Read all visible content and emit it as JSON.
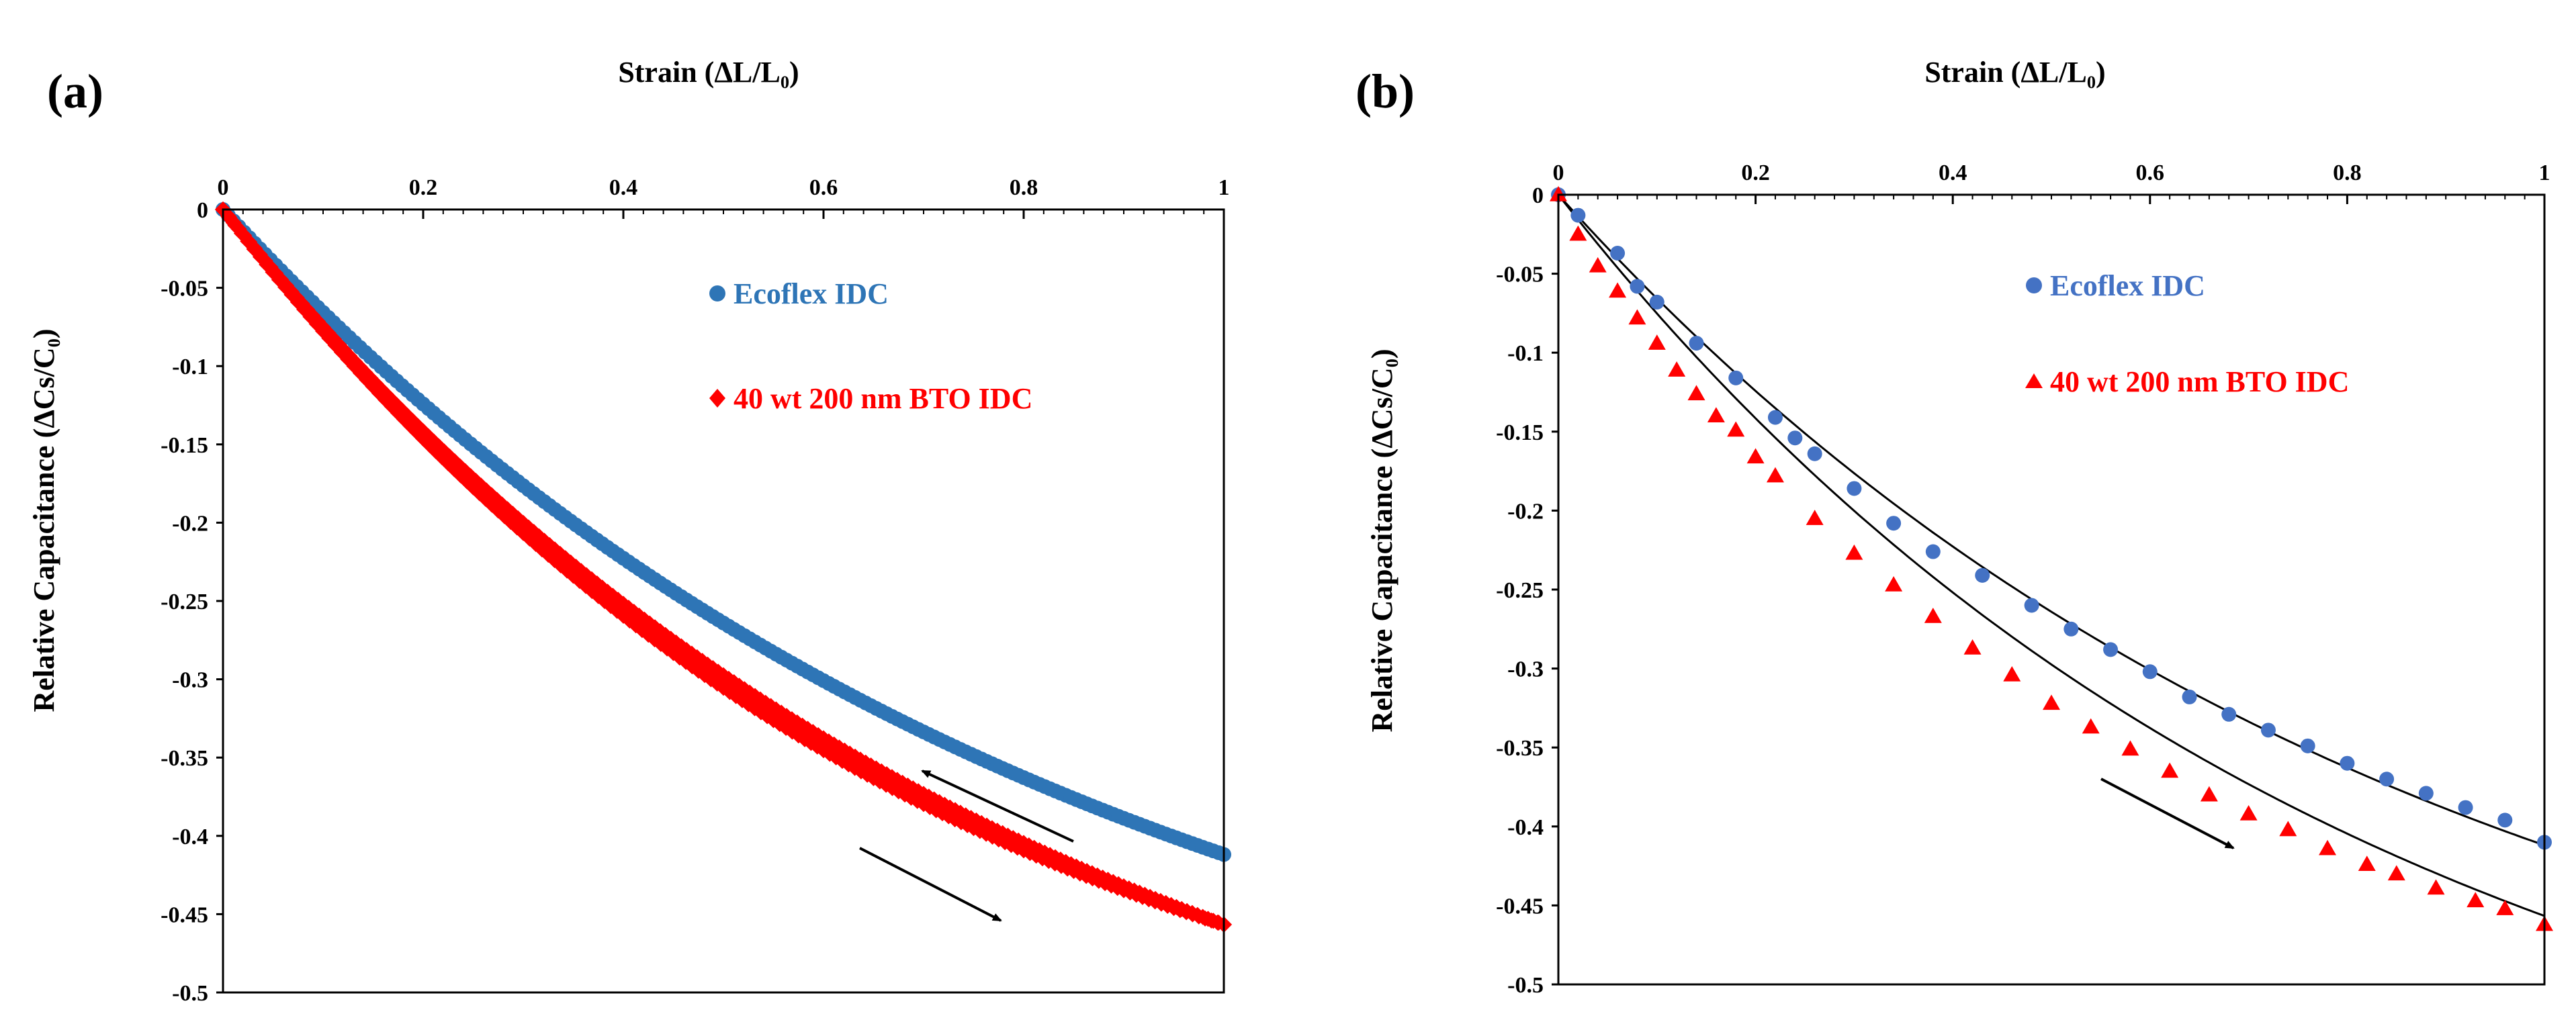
{
  "chart_data": [
    {
      "type": "scatter",
      "panel_label": "(a)",
      "xlabel": "Strain (ΔL/L₀)",
      "ylabel": "Relative Capacitance (ΔCs/C₀)",
      "xlim": [
        0,
        1
      ],
      "ylim": [
        -0.5,
        0
      ],
      "x_ticks": [
        "0",
        "0.2",
        "0.4",
        "0.6",
        "0.8",
        "1"
      ],
      "y_ticks": [
        "0",
        "-0.05",
        "-0.1",
        "-0.15",
        "-0.2",
        "-0.25",
        "-0.3",
        "-0.35",
        "-0.4",
        "-0.45",
        "-0.5"
      ],
      "x_axis_position": "top",
      "legend_position": "top-center",
      "series": [
        {
          "name": "Ecoflex IDC",
          "color": "#2e75b6",
          "marker": "circle",
          "x_start": 0.0,
          "curve": {
            "a": 0.6,
            "k": 1.16
          },
          "x": [
            0.0,
            0.1,
            0.2,
            0.3,
            0.4,
            0.5,
            0.6,
            0.7,
            0.8,
            0.9,
            1.0
          ],
          "values": [
            0.0,
            -0.066,
            -0.125,
            -0.176,
            -0.223,
            -0.264,
            -0.3,
            -0.333,
            -0.362,
            -0.387,
            -0.409
          ]
        },
        {
          "name": "40 wt 200 nm BTO IDC",
          "color": "#ff0000",
          "marker": "diamond",
          "x_start": 0.0,
          "curve": {
            "a": 0.64,
            "k": 1.25
          },
          "x": [
            0.0,
            0.1,
            0.2,
            0.3,
            0.4,
            0.5,
            0.6,
            0.7,
            0.8,
            0.9,
            1.0
          ],
          "values": [
            0.0,
            -0.076,
            -0.142,
            -0.2,
            -0.252,
            -0.297,
            -0.336,
            -0.371,
            -0.402,
            -0.429,
            -0.46
          ]
        }
      ],
      "annotations": [
        {
          "type": "arrow",
          "from": [
            0.85,
            -0.4
          ],
          "to": [
            0.69,
            -0.35
          ],
          "meaning": "unloading"
        },
        {
          "type": "arrow",
          "from": [
            0.64,
            -0.4
          ],
          "to": [
            0.78,
            -0.445
          ],
          "meaning": "loading"
        }
      ]
    },
    {
      "type": "scatter",
      "panel_label": "(b)",
      "xlabel": "Strain (ΔL/L₀)",
      "ylabel": "Relative Capacitance (ΔCs/C₀)",
      "xlim": [
        0,
        1
      ],
      "ylim": [
        -0.5,
        0
      ],
      "x_ticks": [
        "0",
        "0.2",
        "0.4",
        "0.6",
        "0.8",
        "1"
      ],
      "y_ticks": [
        "0",
        "-0.05",
        "-0.1",
        "-0.15",
        "-0.2",
        "-0.25",
        "-0.3",
        "-0.35",
        "-0.4",
        "-0.45",
        "-0.5"
      ],
      "x_axis_position": "top",
      "legend_position": "top-center",
      "series": [
        {
          "name": "Ecoflex IDC",
          "color": "#4472c4",
          "marker": "circle",
          "x": [
            0.0,
            0.02,
            0.06,
            0.08,
            0.1,
            0.14,
            0.18,
            0.22,
            0.24,
            0.26,
            0.3,
            0.34,
            0.38,
            0.43,
            0.48,
            0.52,
            0.56,
            0.6,
            0.64,
            0.68,
            0.72,
            0.76,
            0.8,
            0.84,
            0.88,
            0.92,
            0.96,
            1.0
          ],
          "values": [
            0.0,
            -0.013,
            -0.037,
            -0.058,
            -0.068,
            -0.094,
            -0.116,
            -0.141,
            -0.154,
            -0.164,
            -0.186,
            -0.208,
            -0.226,
            -0.241,
            -0.26,
            -0.275,
            -0.288,
            -0.302,
            -0.318,
            -0.329,
            -0.339,
            -0.349,
            -0.36,
            -0.37,
            -0.379,
            -0.388,
            -0.396,
            -0.41
          ]
        },
        {
          "name": "40 wt 200 nm BTO IDC",
          "color": "#ff0000",
          "marker": "triangle",
          "x": [
            0.0,
            0.02,
            0.04,
            0.06,
            0.08,
            0.1,
            0.12,
            0.14,
            0.16,
            0.18,
            0.2,
            0.22,
            0.26,
            0.3,
            0.34,
            0.38,
            0.42,
            0.46,
            0.5,
            0.54,
            0.58,
            0.62,
            0.66,
            0.7,
            0.74,
            0.78,
            0.82,
            0.85,
            0.89,
            0.93,
            0.96,
            1.0
          ],
          "values": [
            0.0,
            -0.025,
            -0.045,
            -0.061,
            -0.078,
            -0.094,
            -0.111,
            -0.126,
            -0.14,
            -0.149,
            -0.166,
            -0.178,
            -0.205,
            -0.227,
            -0.247,
            -0.267,
            -0.287,
            -0.304,
            -0.322,
            -0.337,
            -0.351,
            -0.365,
            -0.38,
            -0.392,
            -0.402,
            -0.414,
            -0.424,
            -0.43,
            -0.439,
            -0.447,
            -0.452,
            -0.462
          ]
        }
      ],
      "fit_lines": [
        {
          "series": "Ecoflex IDC",
          "color": "#000000",
          "a": 0.6,
          "k": 1.16
        },
        {
          "series": "40 wt 200 nm BTO IDC",
          "color": "#000000",
          "a": 0.64,
          "k": 1.25
        }
      ],
      "annotations": [
        {
          "type": "arrow",
          "from": [
            0.55,
            -0.37
          ],
          "to": [
            0.68,
            -0.415
          ],
          "meaning": "loading"
        }
      ]
    }
  ]
}
